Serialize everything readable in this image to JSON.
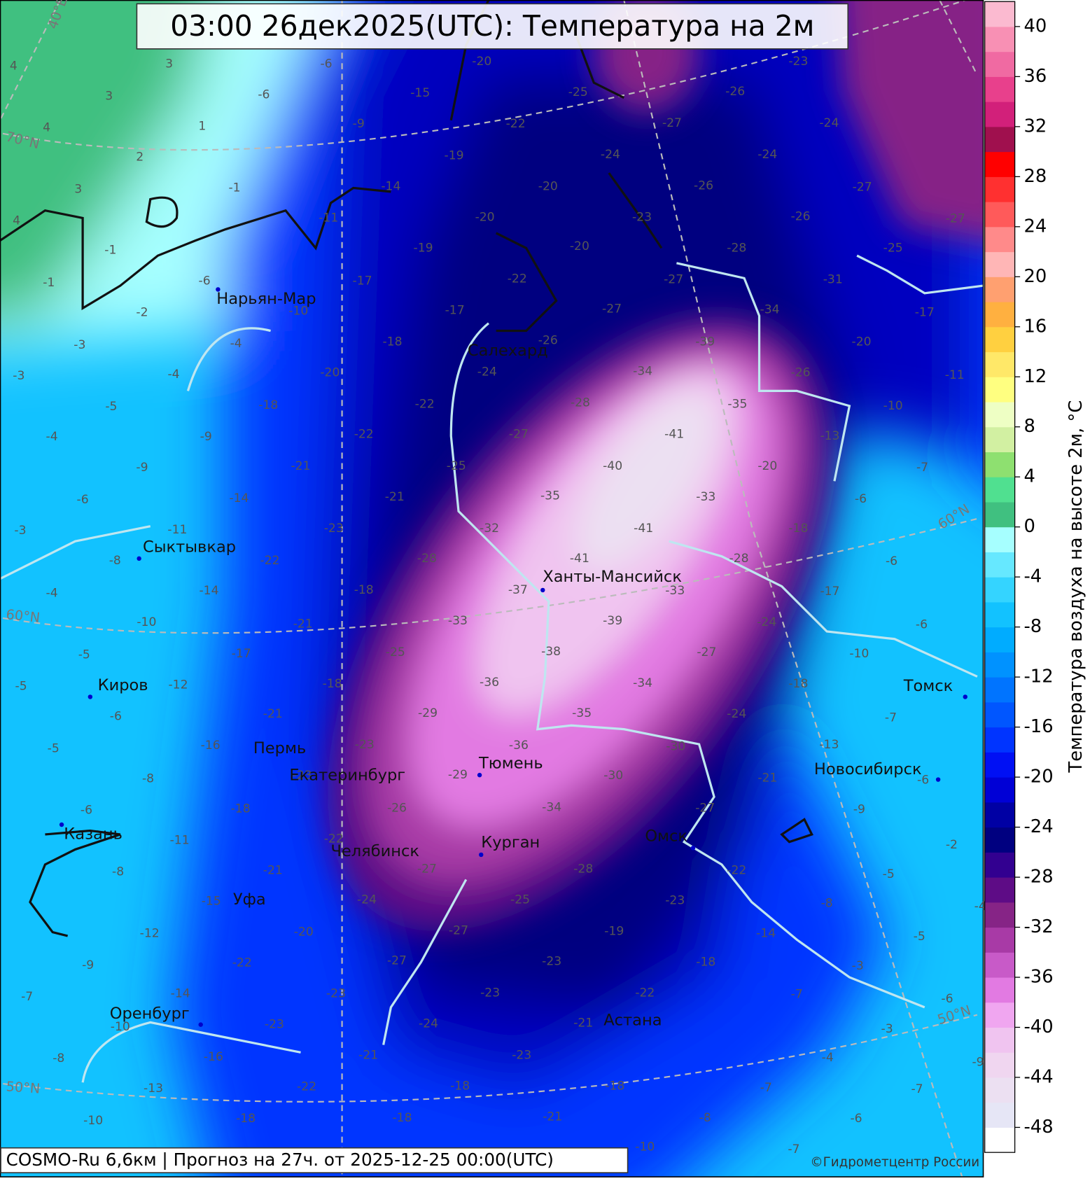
{
  "header": {
    "title": "03:00 26дек2025(UTC): Температура на 2м"
  },
  "footer": {
    "model": "COSMO-Ru 6,6км | Прогноз на  27ч. от 2025-12-25 00:00(UTC)",
    "copyright": "©Гидрометцентр России"
  },
  "colorbar": {
    "label": "Температура воздуха на высоте 2м, °C",
    "range": [
      -50,
      42
    ],
    "ticks": [
      -48,
      -44,
      -40,
      -36,
      -32,
      -28,
      -24,
      -20,
      -16,
      -12,
      -8,
      -4,
      0,
      4,
      8,
      12,
      16,
      20,
      24,
      28,
      32,
      36,
      40
    ],
    "colors": [
      "#ffffff",
      "#e6e6f6",
      "#ece0f2",
      "#f0d6f0",
      "#f0c4f0",
      "#f0a6f0",
      "#e27ae2",
      "#c85ac8",
      "#a83aa6",
      "#862486",
      "#5e0c86",
      "#320090",
      "#000080",
      "#0000a4",
      "#0000d6",
      "#0010f4",
      "#0034ff",
      "#0056ff",
      "#0074ff",
      "#0092ff",
      "#00acff",
      "#12c2ff",
      "#34d4ff",
      "#66e8ff",
      "#a6ffff",
      "#40c080",
      "#50e090",
      "#8ee070",
      "#d2f0a2",
      "#eeffc4",
      "#ffff80",
      "#ffe868",
      "#ffd040",
      "#ffb040",
      "#ffa070",
      "#ffb6b6",
      "#ff8a8a",
      "#ff5a5a",
      "#ff3030",
      "#ff0000",
      "#a0104e",
      "#d2207a",
      "#e8408c",
      "#f06aa2",
      "#f890b4",
      "#fbbad0"
    ]
  },
  "cities": [
    "Нарьян-Мар",
    "Салехард",
    "Сыктывкар",
    "Ханты-Мансийск",
    "Киров",
    "Пермь",
    "Екатеринбург",
    "Тюмень",
    "Томск",
    "Новосибирск",
    "Казань",
    "Курган",
    "Челябинск",
    "Омск",
    "Уфа",
    "Оренбург",
    "Астана"
  ],
  "graticule": [
    "70°N",
    "60°N",
    "50°N",
    "60°N",
    "50°N",
    "40°E"
  ],
  "temperature_labels": [
    4,
    3,
    3,
    4,
    1,
    2,
    3,
    4,
    -1,
    -6,
    -6,
    -9,
    -15,
    -20,
    -19,
    -14,
    -11,
    -1,
    -1,
    -6,
    -2,
    -3,
    -3,
    -5,
    -4,
    -4,
    -10,
    -17,
    -19,
    -20,
    -20,
    -22,
    -25,
    -24,
    -27,
    -26,
    -23,
    -24,
    -24,
    -26,
    -23,
    -20,
    -22,
    -17,
    -18,
    -20,
    -18,
    -9,
    -9,
    -4,
    -6,
    -11,
    -3,
    -8,
    -4,
    -10,
    -5,
    -5,
    -6,
    -5,
    -8,
    -6,
    -11,
    -8,
    -12,
    -9,
    -7,
    -10,
    -8,
    -13,
    -10,
    -14,
    -12,
    -16,
    -17,
    -21,
    -21,
    -23,
    -18,
    -25,
    -22,
    -21,
    -22,
    -21,
    -14,
    -22,
    -18,
    -23,
    -23,
    -18,
    -26,
    -22,
    -21,
    -15,
    -20,
    -22,
    -14,
    -23,
    -23,
    -16,
    -22,
    -18,
    -21,
    -27,
    -24,
    -27,
    -27,
    -24,
    -23,
    -25,
    -23,
    -21,
    -23,
    -18,
    -18,
    -21,
    -18,
    -10,
    -8,
    -7,
    -4,
    -6,
    -7,
    -3,
    -6,
    -9,
    -7,
    -5,
    -5,
    -8,
    -3,
    -7,
    -14,
    -18,
    -22,
    -19,
    -23,
    -22,
    -27,
    -30,
    -30,
    -28,
    -34,
    -36,
    -36,
    -29,
    -29,
    -33,
    -28,
    -32,
    -37,
    -38,
    -35,
    -39,
    -34,
    -33,
    -27,
    -24,
    -21,
    -18,
    -13,
    -9,
    -7,
    -6,
    -6,
    -6,
    -6,
    -7,
    -10,
    -11,
    -20,
    -17,
    -25,
    -27,
    -27,
    -26,
    -31,
    -34,
    -26,
    -13,
    -20,
    -35,
    -39,
    -34,
    -27,
    -27,
    -28,
    -41,
    -40,
    -35,
    -41,
    -41,
    -28,
    -33,
    -24,
    -18,
    -17,
    -10,
    -28,
    -27,
    -25,
    -24,
    -26,
    -2,
    -4
  ]
}
